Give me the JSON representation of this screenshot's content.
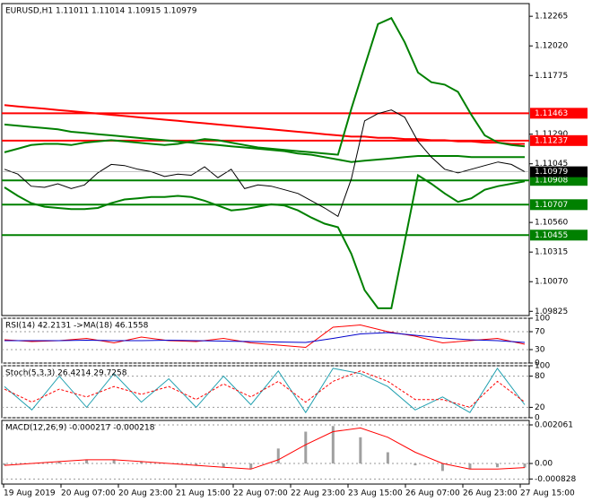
{
  "chart_data": [
    {
      "type": "line",
      "title": "EURUSD,H1  1.11011 1.11014 1.10915 1.10979",
      "ylim": [
        1.0979,
        1.1237
      ],
      "yticks": [
        {
          "value": 1.12265,
          "label": "1.12265"
        },
        {
          "value": 1.1202,
          "label": "1.12020"
        },
        {
          "value": 1.11775,
          "label": "1.11775"
        },
        {
          "value": 1.1129,
          "label": "1.11290"
        },
        {
          "value": 1.11045,
          "label": "1.11045"
        },
        {
          "value": 1.1056,
          "label": "1.10560"
        },
        {
          "value": 1.10315,
          "label": "1.10315"
        },
        {
          "value": 1.1007,
          "label": "1.10070"
        },
        {
          "value": 1.09825,
          "label": "1.09825"
        }
      ],
      "levels": [
        {
          "value": 1.11463,
          "color": "#ff0000"
        },
        {
          "value": 1.11237,
          "color": "#ff0000"
        },
        {
          "value": 1.10908,
          "color": "#008000"
        },
        {
          "value": 1.10707,
          "color": "#008000"
        },
        {
          "value": 1.10455,
          "color": "#008000"
        }
      ],
      "current": {
        "value": 1.10979,
        "color": "#000000"
      },
      "time_labels": [
        "19 Aug 2019",
        "20 Aug 07:00",
        "20 Aug 23:00",
        "21 Aug 15:00",
        "22 Aug 07:00",
        "22 Aug 23:00",
        "23 Aug 15:00",
        "26 Aug 07:00",
        "26 Aug 23:00",
        "27 Aug 15:00"
      ],
      "series": [
        {
          "color": "#ff0000",
          "width": 2,
          "values": [
            1.1153,
            1.1152,
            1.1151,
            1.115,
            1.1149,
            1.1148,
            1.1147,
            1.1146,
            1.1145,
            1.1144,
            1.1143,
            1.1142,
            1.1141,
            1.114,
            1.1139,
            1.1138,
            1.1137,
            1.1136,
            1.1135,
            1.1134,
            1.1133,
            1.1132,
            1.1131,
            1.113,
            1.1129,
            1.1128,
            1.1127,
            1.1127,
            1.1126,
            1.1126,
            1.1125,
            1.1125,
            1.1124,
            1.1124,
            1.1123,
            1.1123,
            1.1122,
            1.1122,
            1.1121,
            1.1121
          ]
        },
        {
          "color": "#008000",
          "width": 2,
          "values": [
            1.1137,
            1.1136,
            1.1135,
            1.1134,
            1.1133,
            1.1131,
            1.113,
            1.1129,
            1.1128,
            1.1127,
            1.1126,
            1.1125,
            1.1124,
            1.1123,
            1.1122,
            1.1121,
            1.112,
            1.1119,
            1.1118,
            1.1117,
            1.1116,
            1.1115,
            1.1113,
            1.1112,
            1.111,
            1.1108,
            1.1106,
            1.1107,
            1.1108,
            1.1109,
            1.111,
            1.1111,
            1.1111,
            1.1111,
            1.1111,
            1.111,
            1.111,
            1.111,
            1.111,
            1.111
          ]
        },
        {
          "color": "#008000",
          "width": 2,
          "values": [
            1.1114,
            1.1117,
            1.112,
            1.1121,
            1.1121,
            1.112,
            1.1122,
            1.1123,
            1.1124,
            1.1123,
            1.1122,
            1.1121,
            1.112,
            1.1121,
            1.1123,
            1.1125,
            1.1124,
            1.1122,
            1.112,
            1.1118,
            1.1117,
            1.1116,
            1.1115,
            1.1114,
            1.1113,
            1.1112,
            1.115,
            1.1185,
            1.122,
            1.1225,
            1.1205,
            1.118,
            1.1172,
            1.117,
            1.1164,
            1.1145,
            1.1128,
            1.1122,
            1.112,
            1.1119
          ]
        },
        {
          "color": "#008000",
          "width": 2,
          "values": [
            1.1085,
            1.1078,
            1.1072,
            1.1069,
            1.1068,
            1.1067,
            1.1067,
            1.1068,
            1.1072,
            1.1075,
            1.1076,
            1.1077,
            1.1077,
            1.1078,
            1.1077,
            1.1074,
            1.107,
            1.1066,
            1.1067,
            1.1069,
            1.1071,
            1.107,
            1.1066,
            1.106,
            1.1055,
            1.1052,
            1.103,
            1.1,
            1.0985,
            1.0985,
            1.104,
            1.1095,
            1.1088,
            1.108,
            1.1073,
            1.1076,
            1.1083,
            1.1086,
            1.1088,
            1.109
          ]
        },
        {
          "color": "#000000",
          "width": 1,
          "values": [
            1.11,
            1.1096,
            1.1086,
            1.1085,
            1.1088,
            1.1084,
            1.1087,
            1.1097,
            1.1104,
            1.1103,
            1.11,
            1.1098,
            1.1094,
            1.1096,
            1.1095,
            1.1102,
            1.1093,
            1.11,
            1.1084,
            1.1087,
            1.1086,
            1.1083,
            1.108,
            1.1074,
            1.1068,
            1.1061,
            1.1092,
            1.114,
            1.1146,
            1.1149,
            1.1143,
            1.1123,
            1.111,
            1.11,
            1.1097,
            1.11,
            1.1103,
            1.1106,
            1.1104,
            1.10979
          ]
        }
      ]
    },
    {
      "type": "line",
      "title": "RSI(14) 42.2131  ->MA(18) 46.1558",
      "ylim": [
        0,
        100
      ],
      "yticks": [
        100,
        70,
        30,
        0
      ],
      "series": [
        {
          "color": "#ff0000",
          "width": 1,
          "values": [
            52,
            48,
            50,
            55,
            45,
            58,
            50,
            48,
            55,
            45,
            40,
            35,
            80,
            85,
            70,
            60,
            45,
            50,
            55,
            42
          ]
        },
        {
          "color": "#0000cc",
          "width": 1,
          "values": [
            50,
            50,
            50,
            51,
            50,
            50,
            51,
            50,
            49,
            48,
            47,
            46,
            55,
            65,
            68,
            62,
            56,
            52,
            50,
            46
          ]
        }
      ]
    },
    {
      "type": "line",
      "title": "Stoch(5,3,3) 26.4214 29.7258",
      "ylim": [
        0,
        100
      ],
      "yticks": [
        100,
        80,
        20,
        0
      ],
      "series": [
        {
          "color": "#20a0b0",
          "width": 1,
          "values": [
            60,
            15,
            80,
            20,
            85,
            30,
            75,
            20,
            80,
            25,
            90,
            10,
            95,
            85,
            60,
            15,
            40,
            10,
            95,
            25
          ]
        },
        {
          "color": "#ff0000",
          "width": 1,
          "dash": true,
          "values": [
            55,
            30,
            55,
            40,
            60,
            45,
            60,
            35,
            65,
            40,
            70,
            30,
            70,
            90,
            70,
            35,
            35,
            20,
            70,
            30
          ]
        }
      ]
    },
    {
      "type": "line",
      "title": "MACD(12,26,9) -0.000217 -0.000218",
      "ylim": [
        -0.0011,
        0.0023
      ],
      "yticks": [
        0.002061,
        {
          "value": 0,
          "label": "0.00"
        },
        -0.000828
      ],
      "series": [
        {
          "color": "#a0a0a0",
          "width": 1,
          "style": "bar",
          "values": [
            -0.0001,
            0.0,
            0.0001,
            0.0002,
            0.0002,
            0.0001,
            0.0,
            -0.0001,
            -0.0002,
            -0.0003,
            0.0008,
            0.0017,
            0.002,
            0.0014,
            0.0006,
            -0.0001,
            -0.0004,
            -0.0003,
            -0.0002,
            -0.000217
          ]
        },
        {
          "color": "#ff0000",
          "width": 1,
          "values": [
            -0.0001,
            0.0,
            0.0001,
            0.0002,
            0.0002,
            0.0001,
            0.0,
            -0.0001,
            -0.0002,
            -0.0003,
            0.0002,
            0.001,
            0.0017,
            0.0019,
            0.0014,
            0.0006,
            0.0,
            -0.0003,
            -0.0003,
            -0.000218
          ]
        }
      ]
    }
  ]
}
